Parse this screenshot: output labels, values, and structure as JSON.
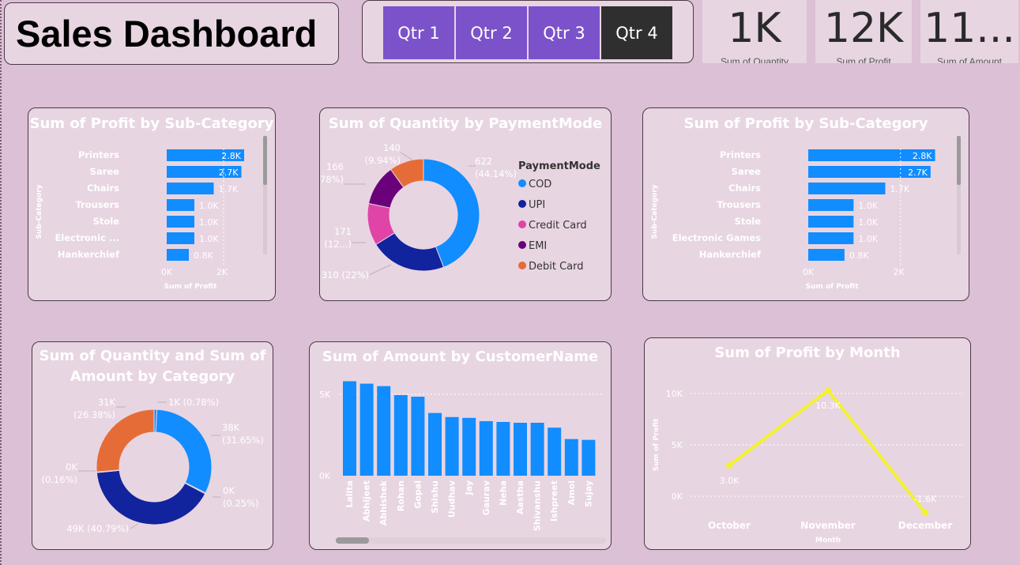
{
  "header": {
    "title": "Sales Dashboard"
  },
  "slicer": {
    "buttons": [
      "Qtr 1",
      "Qtr 2",
      "Qtr 3",
      "Qtr 4"
    ],
    "active": 3
  },
  "cards": [
    {
      "value": "1K",
      "label": "Sum of Quantity"
    },
    {
      "value": "12K",
      "label": "Sum of Profit"
    },
    {
      "value": "11...",
      "label": "Sum of Amount"
    }
  ],
  "colors": {
    "bar": "#118dff",
    "line": "#f2f230",
    "cod": "#118dff",
    "upi": "#12239e",
    "credit": "#e044a7",
    "emi": "#6b007b",
    "debit": "#e66c37",
    "title": "#ffffff"
  },
  "chart_data": [
    {
      "id": "profit_subcat_1",
      "type": "bar",
      "orientation": "horizontal",
      "title": "Sum of Profit by Sub-Category",
      "xlabel": "Sum of Profit",
      "ylabel": "Sub-Category",
      "categories": [
        "Printers",
        "Saree",
        "Chairs",
        "Trousers",
        "Stole",
        "Electronic ...",
        "Hankerchief"
      ],
      "values": [
        2800,
        2700,
        1700,
        1000,
        1000,
        1000,
        800
      ],
      "labels": [
        "2.8K",
        "2.7K",
        "1.7K",
        "1.0K",
        "1.0K",
        "1.0K",
        "0.8K"
      ],
      "xticks": [
        "0K",
        "2K"
      ],
      "xlim": [
        0,
        3000
      ]
    },
    {
      "id": "qty_payment",
      "type": "pie",
      "donut": true,
      "title": "Sum of Quantity by PaymentMode",
      "legend_title": "PaymentMode",
      "categories": [
        "COD",
        "UPI",
        "Credit Card",
        "EMI",
        "Debit Card"
      ],
      "values": [
        622,
        310,
        171,
        166,
        140
      ],
      "labels": [
        [
          "622",
          "(44.14%)"
        ],
        [
          "310 (22%)"
        ],
        [
          "171",
          "(12...)"
        ],
        [
          "166",
          "(11.78%)"
        ],
        [
          "140",
          "(9.94%)"
        ]
      ]
    },
    {
      "id": "profit_subcat_2",
      "type": "bar",
      "orientation": "horizontal",
      "title": "Sum of Profit by Sub-Category",
      "xlabel": "Sum of Profit",
      "ylabel": "Sub-Category",
      "categories": [
        "Printers",
        "Saree",
        "Chairs",
        "Trousers",
        "Stole",
        "Electronic Games",
        "Hankerchief"
      ],
      "values": [
        2800,
        2700,
        1700,
        1000,
        1000,
        1000,
        800
      ],
      "labels": [
        "2.8K",
        "2.7K",
        "1.7K",
        "1.0K",
        "1.0K",
        "1.0K",
        "0.8K"
      ],
      "xticks": [
        "0K",
        "2K"
      ],
      "xlim": [
        0,
        3000
      ]
    },
    {
      "id": "qty_amount_cat",
      "type": "pie",
      "donut": true,
      "title": [
        "Sum of Quantity and Sum of",
        "Amount by Category"
      ],
      "categories": [
        "Qty Clothing",
        "Amt Clothing",
        "Qty Electronics",
        "Amt Electronics",
        "Qty Furniture",
        "Amt Furniture"
      ],
      "values": [
        0.78,
        31.65,
        0.25,
        40.79,
        0.16,
        26.38
      ],
      "labels": [
        [
          "1K (0.78%)"
        ],
        [
          "38K",
          "(31.65%)"
        ],
        [
          "0K",
          "(0.25%)"
        ],
        [
          "49K (40.79%)"
        ],
        [
          "0K",
          "(0.16%)"
        ],
        [
          "31K",
          "(26.38%)"
        ]
      ]
    },
    {
      "id": "amount_customer",
      "type": "bar",
      "title": "Sum of Amount by CustomerName",
      "categories": [
        "Lalita",
        "Abhijeet",
        "Abhishek",
        "Rohan",
        "Gopal",
        "Shishu",
        "Uudhav",
        "Jay",
        "Gaurav",
        "Neha",
        "Aastha",
        "Shivanshu",
        "Ishpreet",
        "Amol",
        "Sujay"
      ],
      "values": [
        5800,
        5650,
        5500,
        4950,
        4850,
        3850,
        3600,
        3550,
        3350,
        3300,
        3250,
        3250,
        2950,
        2250,
        2200
      ],
      "yticks": [
        "0K",
        "5K"
      ],
      "ylim": [
        0,
        6500
      ]
    },
    {
      "id": "profit_month",
      "type": "line",
      "title": "Sum of Profit by Month",
      "xlabel": "Month",
      "ylabel": "Sum of Profit",
      "categories": [
        "October",
        "November",
        "December"
      ],
      "values": [
        3000,
        10300,
        -1600
      ],
      "labels": [
        "3.0K",
        "10.3K",
        "-1.6K"
      ],
      "yticks": [
        "0K",
        "5K",
        "10K"
      ],
      "ylim": [
        -2500,
        11500
      ]
    }
  ]
}
